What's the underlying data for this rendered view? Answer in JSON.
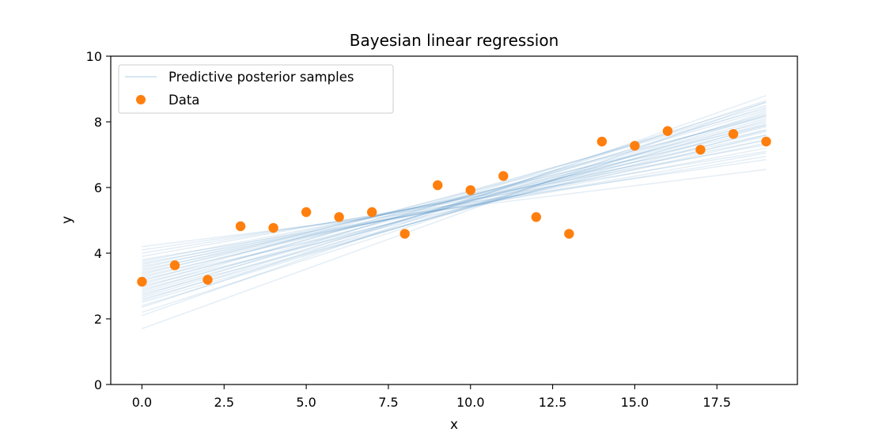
{
  "chart_data": {
    "type": "scatter",
    "title": "Bayesian linear regression",
    "xlabel": "x",
    "ylabel": "y",
    "xlim": [
      -0.95,
      19.95
    ],
    "ylim": [
      0,
      10
    ],
    "grid": false,
    "legend_placement": "top-left",
    "x_ticks": [
      {
        "value": 0,
        "label": "0.0"
      },
      {
        "value": 2.5,
        "label": "2.5"
      },
      {
        "value": 5,
        "label": "5.0"
      },
      {
        "value": 7.5,
        "label": "7.5"
      },
      {
        "value": 10,
        "label": "10.0"
      },
      {
        "value": 12.5,
        "label": "12.5"
      },
      {
        "value": 15,
        "label": "15.0"
      },
      {
        "value": 17.5,
        "label": "17.5"
      }
    ],
    "y_ticks": [
      {
        "value": 0,
        "label": "0"
      },
      {
        "value": 2,
        "label": "2"
      },
      {
        "value": 4,
        "label": "4"
      },
      {
        "value": 6,
        "label": "6"
      },
      {
        "value": 8,
        "label": "8"
      },
      {
        "value": 10,
        "label": "10"
      }
    ],
    "series": [
      {
        "name": "Data",
        "kind": "scatter",
        "color": "#ff7f0e",
        "x": [
          0,
          1,
          2,
          3,
          4,
          5,
          6,
          7,
          8,
          9,
          10,
          11,
          12,
          13,
          14,
          15,
          16,
          17,
          18,
          19
        ],
        "y": [
          3.13,
          3.63,
          3.19,
          4.82,
          4.77,
          5.25,
          5.1,
          5.25,
          4.59,
          6.07,
          5.92,
          6.35,
          5.1,
          4.59,
          7.4,
          7.27,
          7.72,
          7.15,
          7.63,
          7.4
        ]
      },
      {
        "name": "Predictive posterior samples",
        "kind": "lines",
        "color": "#1f77b4",
        "x_range": [
          0,
          19
        ],
        "lines": [
          {
            "y0": 1.7,
            "y1": 8.6
          },
          {
            "y0": 2.1,
            "y1": 8.8
          },
          {
            "y0": 2.2,
            "y1": 8.3
          },
          {
            "y0": 2.35,
            "y1": 8.65
          },
          {
            "y0": 2.4,
            "y1": 8.2
          },
          {
            "y0": 2.5,
            "y1": 8.05
          },
          {
            "y0": 2.55,
            "y1": 8.45
          },
          {
            "y0": 2.6,
            "y1": 7.9
          },
          {
            "y0": 2.65,
            "y1": 8.25
          },
          {
            "y0": 2.7,
            "y1": 8.6
          },
          {
            "y0": 2.75,
            "y1": 7.75
          },
          {
            "y0": 2.8,
            "y1": 8.1
          },
          {
            "y0": 2.85,
            "y1": 8.35
          },
          {
            "y0": 2.9,
            "y1": 7.95
          },
          {
            "y0": 2.95,
            "y1": 8.5
          },
          {
            "y0": 3.0,
            "y1": 7.6
          },
          {
            "y0": 3.05,
            "y1": 8.2
          },
          {
            "y0": 3.1,
            "y1": 7.85
          },
          {
            "y0": 3.15,
            "y1": 8.4
          },
          {
            "y0": 3.2,
            "y1": 7.45
          },
          {
            "y0": 3.25,
            "y1": 8.0
          },
          {
            "y0": 3.3,
            "y1": 7.7
          },
          {
            "y0": 3.35,
            "y1": 8.15
          },
          {
            "y0": 3.4,
            "y1": 7.55
          },
          {
            "y0": 3.45,
            "y1": 7.9
          },
          {
            "y0": 3.5,
            "y1": 7.35
          },
          {
            "y0": 3.55,
            "y1": 7.75
          },
          {
            "y0": 3.6,
            "y1": 7.2
          },
          {
            "y0": 3.65,
            "y1": 7.6
          },
          {
            "y0": 3.7,
            "y1": 7.05
          },
          {
            "y0": 3.75,
            "y1": 7.45
          },
          {
            "y0": 3.8,
            "y1": 6.95
          },
          {
            "y0": 3.9,
            "y1": 7.3
          },
          {
            "y0": 4.0,
            "y1": 7.1
          },
          {
            "y0": 4.1,
            "y1": 6.85
          },
          {
            "y0": 4.2,
            "y1": 6.55
          }
        ]
      }
    ]
  }
}
